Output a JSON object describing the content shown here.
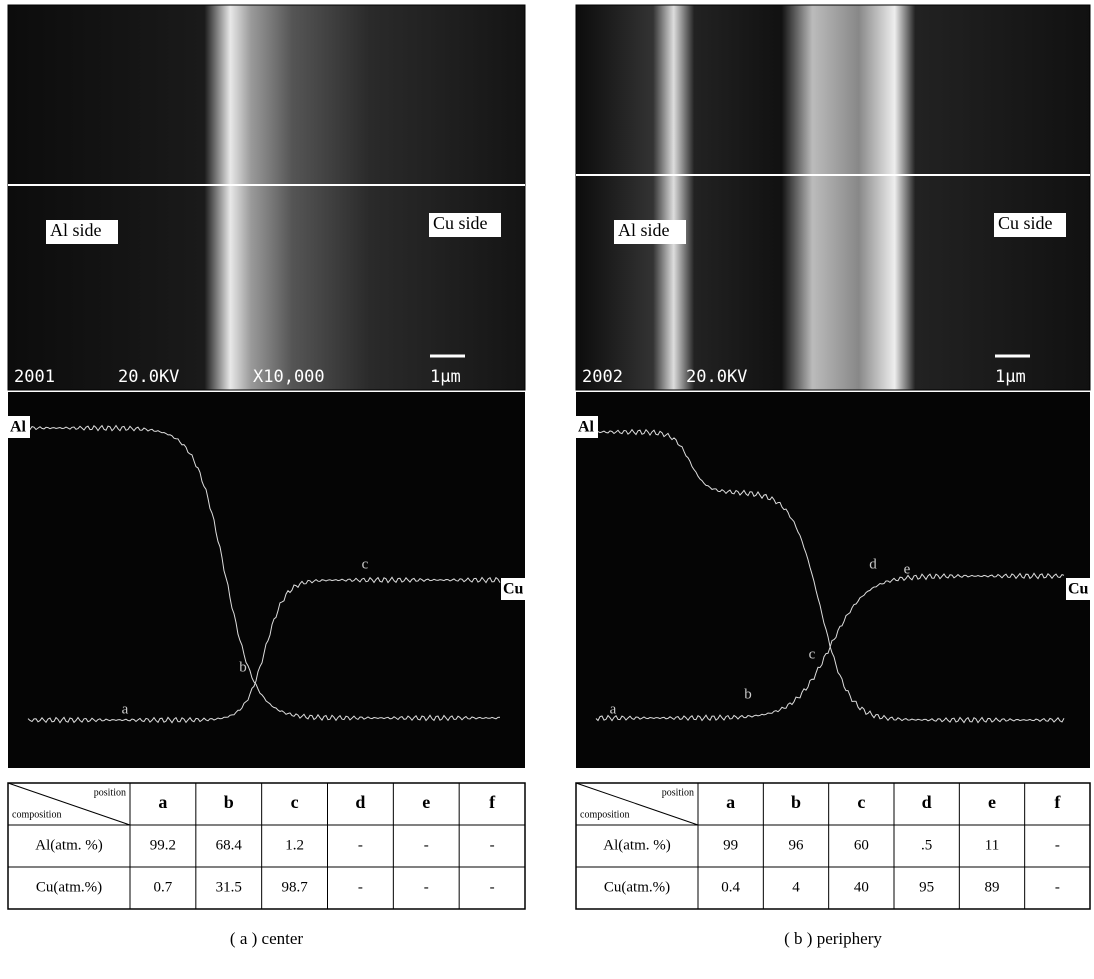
{
  "panels": [
    {
      "sem": {
        "left_label": "Al side",
        "right_label": "Cu side",
        "specimen": "2001",
        "voltage": "20.0KV",
        "magnification": "X10,000",
        "scale": "1μm"
      },
      "profile": {
        "top_label": "Al",
        "right_label": "Cu",
        "points": [
          "a",
          "b",
          "c"
        ]
      },
      "table": {
        "corner_top": "position",
        "corner_bottom": "composition",
        "columns": [
          "a",
          "b",
          "c",
          "d",
          "e",
          "f"
        ],
        "rows": [
          [
            "Al(atm. %)",
            "99.2",
            "68.4",
            "1.2",
            "-",
            "-",
            "-"
          ],
          [
            "Cu(atm.%)",
            "0.7",
            "31.5",
            "98.7",
            "-",
            "-",
            "-"
          ]
        ]
      },
      "caption": "( a ) center"
    },
    {
      "sem": {
        "left_label": "Al side",
        "right_label": "Cu side",
        "specimen": "2002",
        "voltage": "20.0KV",
        "scale": "1μm"
      },
      "profile": {
        "top_label": "Al",
        "right_label": "Cu",
        "points": [
          "a",
          "b",
          "c",
          "d",
          "e"
        ]
      },
      "table": {
        "corner_top": "position",
        "corner_bottom": "composition",
        "columns": [
          "a",
          "b",
          "c",
          "d",
          "e",
          "f"
        ],
        "rows": [
          [
            "Al(atm. %)",
            "99",
            "96",
            "60",
            ".5",
            "11",
            "-"
          ],
          [
            "Cu(atm.%)",
            "0.4",
            "4",
            "40",
            "95",
            "89",
            "-"
          ]
        ]
      },
      "caption": "( b ) periphery"
    }
  ]
}
